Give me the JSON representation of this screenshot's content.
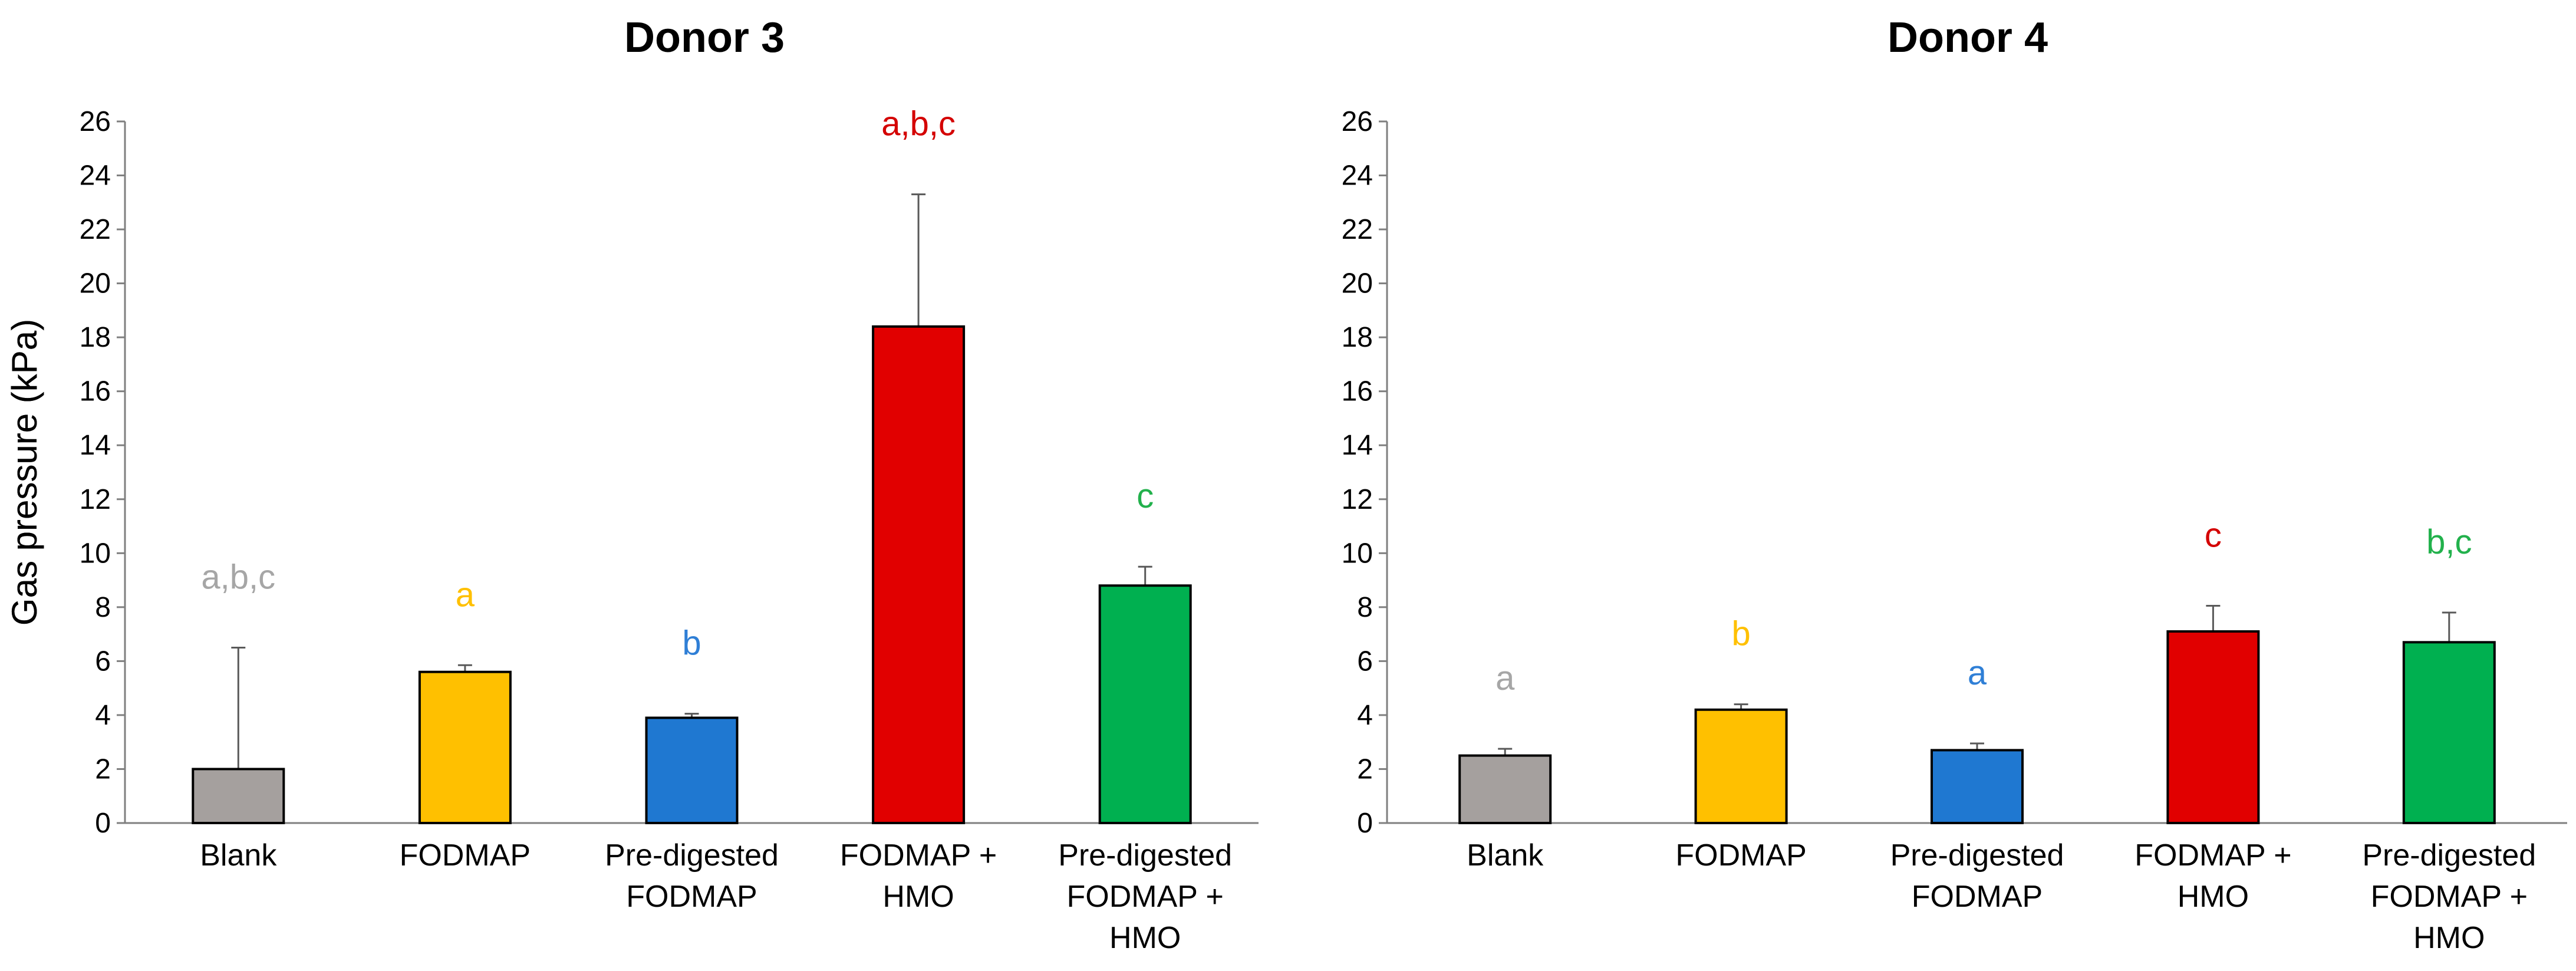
{
  "chart_data": [
    {
      "type": "bar",
      "title": "Donor 3",
      "ylabel": "Gas pressure (kPa)",
      "xlabel": "",
      "ylim": [
        0,
        26
      ],
      "yticks": [
        0,
        2,
        4,
        6,
        8,
        10,
        12,
        14,
        16,
        18,
        20,
        22,
        24,
        26
      ],
      "grid": false,
      "categories": [
        [
          "Blank"
        ],
        [
          "FODMAP"
        ],
        [
          "Pre-digested",
          "FODMAP"
        ],
        [
          "FODMAP +",
          "HMO"
        ],
        [
          "Pre-digested",
          "FODMAP +",
          "HMO"
        ]
      ],
      "values": [
        2.0,
        5.6,
        3.9,
        18.4,
        8.8
      ],
      "errors": [
        4.5,
        0.25,
        0.15,
        4.9,
        0.7
      ],
      "significance": [
        "a,b,c",
        "a",
        "b",
        "a,b,c",
        "c"
      ],
      "colors": [
        "#a5a09e",
        "#ffc000",
        "#1f78d1",
        "#e10000",
        "#00b050"
      ],
      "sig_colors": [
        "#a6a6a6",
        "#ffc000",
        "#2f7fd6",
        "#d40000",
        "#22b14c"
      ]
    },
    {
      "type": "bar",
      "title": "Donor 4",
      "ylabel": "Gas pressure (kPa)",
      "xlabel": "",
      "ylim": [
        0,
        26
      ],
      "yticks": [
        0,
        2,
        4,
        6,
        8,
        10,
        12,
        14,
        16,
        18,
        20,
        22,
        24,
        26
      ],
      "grid": false,
      "categories": [
        [
          "Blank"
        ],
        [
          "FODMAP"
        ],
        [
          "Pre-digested",
          "FODMAP"
        ],
        [
          "FODMAP +",
          "HMO"
        ],
        [
          "Pre-digested",
          "FODMAP +",
          "HMO"
        ]
      ],
      "values": [
        2.5,
        4.2,
        2.7,
        7.1,
        6.7
      ],
      "errors": [
        0.25,
        0.2,
        0.25,
        0.95,
        1.1
      ],
      "significance": [
        "a",
        "b",
        "a",
        "c",
        "b,c"
      ],
      "colors": [
        "#a5a09e",
        "#ffc000",
        "#1f78d1",
        "#e10000",
        "#00b050"
      ],
      "sig_colors": [
        "#a6a6a6",
        "#ffc000",
        "#2f7fd6",
        "#d40000",
        "#22b14c"
      ]
    }
  ]
}
